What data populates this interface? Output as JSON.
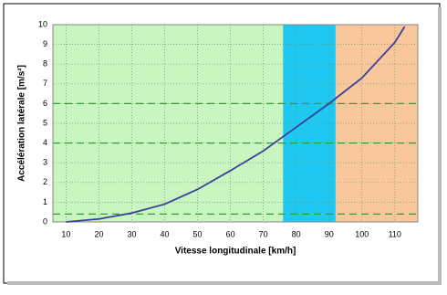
{
  "chart_data": {
    "type": "line",
    "x_label": "Vitesse longitudinale [km/h]",
    "y_label": "Accélération latérale [m/s²]",
    "x": [
      10,
      20,
      30,
      40,
      50,
      60,
      70,
      80,
      90,
      100,
      110,
      113
    ],
    "series": [
      {
        "color": "#3b3f9c",
        "values": [
          0,
          0.15,
          0.45,
          0.9,
          1.65,
          2.6,
          3.6,
          4.8,
          6.0,
          7.3,
          9.1,
          9.9
        ]
      }
    ],
    "bands": [
      {
        "from": 6,
        "to": 76,
        "color": "#c8f5c0"
      },
      {
        "from": 76,
        "to": 92,
        "color": "#1ec8f0"
      },
      {
        "from": 92,
        "to": 117,
        "color": "#f8c89c"
      }
    ],
    "reference_lines": {
      "values": [
        0.4,
        4,
        6
      ],
      "color": "#3a9a3a"
    },
    "xlim": [
      6,
      117
    ],
    "xticks": [
      10,
      20,
      30,
      40,
      50,
      60,
      70,
      80,
      90,
      100,
      110
    ],
    "ylim": [
      0,
      10
    ],
    "yticks": [
      0,
      1,
      2,
      3,
      4,
      5,
      6,
      7,
      8,
      9,
      10
    ],
    "grid": true
  }
}
